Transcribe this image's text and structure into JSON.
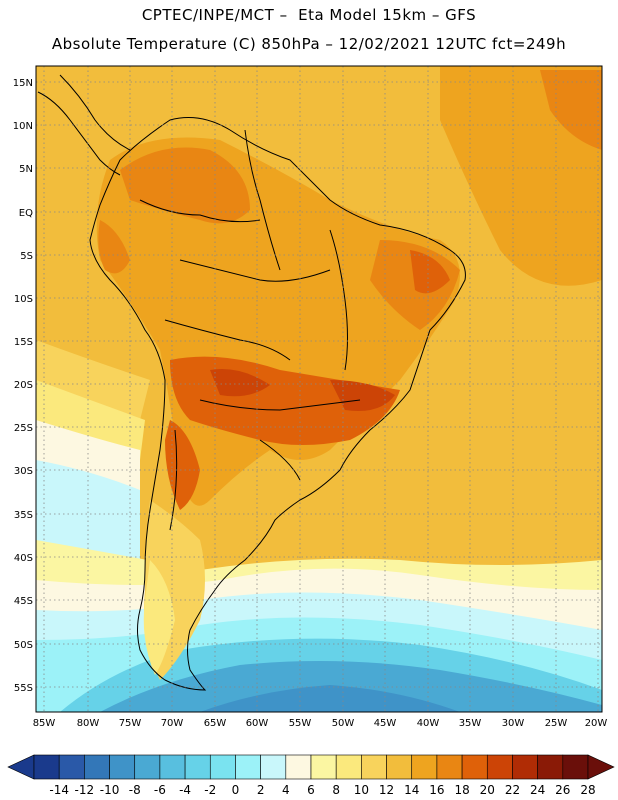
{
  "header": {
    "line1": "CPTEC/INPE/MCT –  Eta Model 15km – GFS",
    "line2": "Absolute Temperature (C) 850hPa – 12/02/2021 12UTC fct=249h"
  },
  "axes": {
    "lat_labels": [
      "15N",
      "10N",
      "5N",
      "EQ",
      "5S",
      "10S",
      "15S",
      "20S",
      "25S",
      "30S",
      "35S",
      "40S",
      "45S",
      "50S",
      "55S"
    ],
    "lon_labels": [
      "85W",
      "80W",
      "75W",
      "70W",
      "65W",
      "60W",
      "55W",
      "50W",
      "45W",
      "40W",
      "35W",
      "30W",
      "25W",
      "20W"
    ]
  },
  "colorbar": {
    "labels": [
      "-14",
      "-12",
      "-10",
      "-8",
      "-6",
      "-4",
      "-2",
      "0",
      "2",
      "4",
      "6",
      "8",
      "10",
      "12",
      "14",
      "16",
      "18",
      "20",
      "22",
      "24",
      "26",
      "28"
    ],
    "colors": [
      "#1a3a8c",
      "#2a59a8",
      "#3377b8",
      "#3f93c8",
      "#4aa9d3",
      "#58bfdf",
      "#66d2e8",
      "#7ae3f0",
      "#9cf2f8",
      "#c9f7fb",
      "#fdf8e1",
      "#fbf6a2",
      "#fbe97d",
      "#f8d35c",
      "#f2bd3c",
      "#eea41f",
      "#e98613",
      "#df6109",
      "#cc4406",
      "#b02c05",
      "#8a1a06",
      "#6a0f0a"
    ]
  }
}
